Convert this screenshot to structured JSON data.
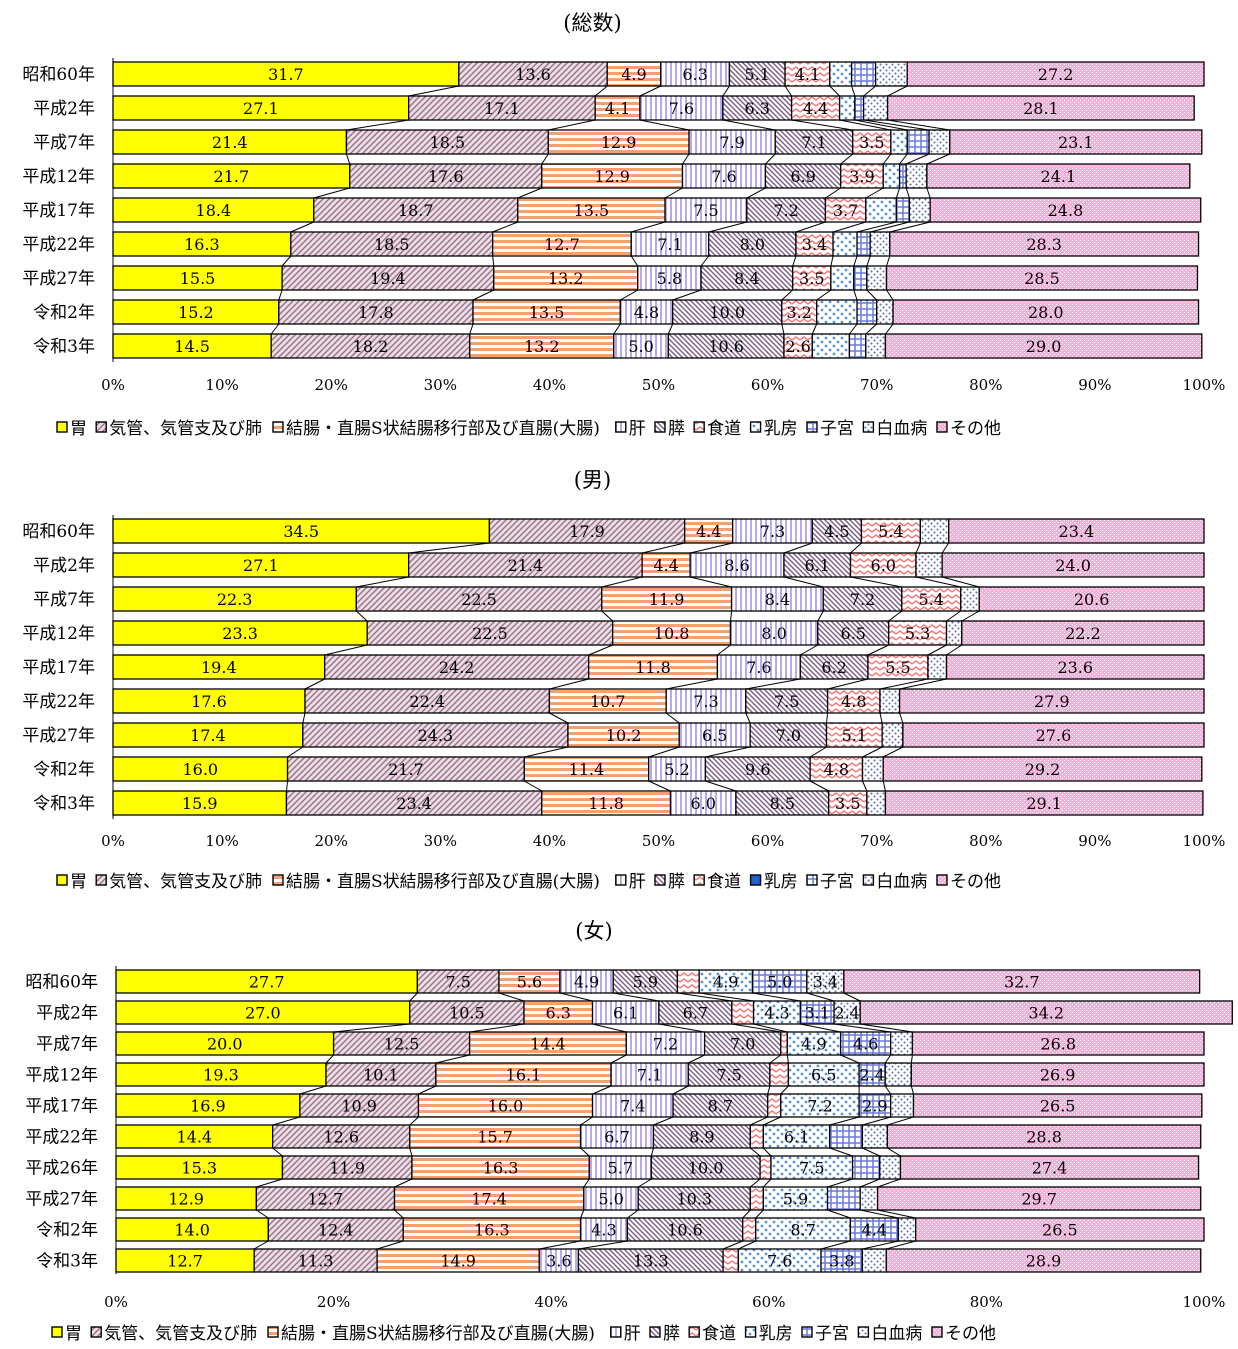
{
  "colors": {
    "胃": "#ffff00",
    "気管、気管支及び肺": "#c9a4b4",
    "結腸・直腸S状結腸移行部及び直腸(大腸)": "#f4a070",
    "肝": "#b8a8f0",
    "膵": "#9a7aa8",
    "食道": "#f0a0a0",
    "乳房": "#8ab4e8",
    "子宮": "#6a7ae0",
    "白血病": "#7a8ac8",
    "その他": "#f8b0d8"
  },
  "chart_data": [
    {
      "type": "bar",
      "orientation": "horizontal-stacked-100",
      "title": "(総数)",
      "categories": [
        "昭和60年",
        "平成2年",
        "平成7年",
        "平成12年",
        "平成17年",
        "平成22年",
        "平成27年",
        "令和2年",
        "令和3年"
      ],
      "series": [
        {
          "name": "胃",
          "values": [
            31.7,
            27.1,
            21.4,
            21.7,
            18.4,
            16.3,
            15.5,
            15.2,
            14.5
          ]
        },
        {
          "name": "気管、気管支及び肺",
          "values": [
            13.6,
            17.1,
            18.5,
            17.6,
            18.7,
            18.5,
            19.4,
            17.8,
            18.2
          ]
        },
        {
          "name": "結腸・直腸S状結腸移行部及び直腸(大腸)",
          "values": [
            4.9,
            4.1,
            12.9,
            12.9,
            13.5,
            12.7,
            13.2,
            13.5,
            13.2
          ]
        },
        {
          "name": "肝",
          "values": [
            6.3,
            7.6,
            7.9,
            7.6,
            7.5,
            7.1,
            5.8,
            4.8,
            5.0
          ]
        },
        {
          "name": "膵",
          "values": [
            5.1,
            6.3,
            7.1,
            6.9,
            7.2,
            8.0,
            8.4,
            10.0,
            10.6
          ]
        },
        {
          "name": "食道",
          "values": [
            4.1,
            4.4,
            3.5,
            3.9,
            3.7,
            3.4,
            3.5,
            3.2,
            2.6
          ]
        },
        {
          "name": "乳房",
          "values": [
            2.0,
            1.4,
            1.5,
            1.5,
            2.8,
            2.2,
            2.1,
            3.7,
            3.4
          ]
        },
        {
          "name": "子宮",
          "values": [
            2.2,
            0.8,
            2.0,
            0.6,
            1.2,
            1.2,
            1.2,
            1.8,
            1.5
          ]
        },
        {
          "name": "白血病",
          "values": [
            2.9,
            2.2,
            1.9,
            1.9,
            1.9,
            1.8,
            1.8,
            1.5,
            1.8
          ]
        },
        {
          "name": "その他",
          "values": [
            27.2,
            28.1,
            23.1,
            24.1,
            24.8,
            28.3,
            28.5,
            28.0,
            29.0
          ]
        }
      ],
      "labels": [
        [
          "31.7",
          "13.6",
          "4.9",
          "6.3",
          "5.1",
          "4.1",
          "",
          "",
          "",
          "27.2"
        ],
        [
          "27.1",
          "17.1",
          "4.1",
          "7.6",
          "6.3",
          "4.4",
          "",
          "",
          "",
          "28.1"
        ],
        [
          "21.4",
          "18.5",
          "12.9",
          "7.9",
          "7.1",
          "3.5",
          "",
          "",
          "",
          "23.1"
        ],
        [
          "21.7",
          "17.6",
          "12.9",
          "7.6",
          "6.9",
          "3.9",
          "",
          "",
          "",
          "24.1"
        ],
        [
          "18.4",
          "18.7",
          "13.5",
          "7.5",
          "7.2",
          "3.7",
          "",
          "",
          "",
          "24.8"
        ],
        [
          "16.3",
          "18.5",
          "12.7",
          "7.1",
          "8.0",
          "3.4",
          "",
          "",
          "",
          "28.3"
        ],
        [
          "15.5",
          "19.4",
          "13.2",
          "5.8",
          "8.4",
          "3.5",
          "",
          "",
          "",
          "28.5"
        ],
        [
          "15.2",
          "17.8",
          "13.5",
          "4.8",
          "10.0",
          "3.2",
          "",
          "",
          "",
          "28.0"
        ],
        [
          "14.5",
          "18.2",
          "13.2",
          "5.0",
          "10.6",
          "2.6",
          "",
          "",
          "",
          "29.0"
        ]
      ],
      "xticks": [
        "0%",
        "10%",
        "20%",
        "30%",
        "40%",
        "50%",
        "60%",
        "70%",
        "80%",
        "90%",
        "100%"
      ],
      "xlim": [
        0,
        100
      ],
      "legend": [
        {
          "key": "胃",
          "label": "胃"
        },
        {
          "key": "気管、気管支及び肺",
          "label": "気管、気管支及び肺"
        },
        {
          "key": "結腸・直腸S状結腸移行部及び直腸(大腸)",
          "label": "結腸・直腸S状結腸移行部及び直腸(大腸)"
        },
        {
          "key": "肝",
          "label": "肝"
        },
        {
          "key": "膵",
          "label": "膵"
        },
        {
          "key": "食道",
          "label": "食道"
        },
        {
          "key": "乳房",
          "label": "乳房"
        },
        {
          "key": "子宮",
          "label": "子宮"
        },
        {
          "key": "白血病",
          "label": "白血病"
        },
        {
          "key": "その他",
          "label": "その他"
        }
      ],
      "legend_position": "bottom"
    },
    {
      "type": "bar",
      "orientation": "horizontal-stacked-100",
      "title": "(男)",
      "categories": [
        "昭和60年",
        "平成2年",
        "平成7年",
        "平成12年",
        "平成17年",
        "平成22年",
        "平成27年",
        "令和2年",
        "令和3年"
      ],
      "series": [
        {
          "name": "胃",
          "values": [
            34.5,
            27.1,
            22.3,
            23.3,
            19.4,
            17.6,
            17.4,
            16.0,
            15.9
          ]
        },
        {
          "name": "気管、気管支及び肺",
          "values": [
            17.9,
            21.4,
            22.5,
            22.5,
            24.2,
            22.4,
            24.3,
            21.7,
            23.4
          ]
        },
        {
          "name": "結腸・直腸S状結腸移行部及び直腸(大腸)",
          "values": [
            4.4,
            4.4,
            11.9,
            10.8,
            11.8,
            10.7,
            10.2,
            11.4,
            11.8
          ]
        },
        {
          "name": "肝",
          "values": [
            7.3,
            8.6,
            8.4,
            8.0,
            7.6,
            7.3,
            6.5,
            5.2,
            6.0
          ]
        },
        {
          "name": "膵",
          "values": [
            4.5,
            6.1,
            7.2,
            6.5,
            6.2,
            7.5,
            7.0,
            9.6,
            8.5
          ]
        },
        {
          "name": "食道",
          "values": [
            5.4,
            6.0,
            5.4,
            5.3,
            5.5,
            4.8,
            5.1,
            4.8,
            3.5
          ]
        },
        {
          "name": "白血病",
          "values": [
            2.6,
            2.4,
            1.7,
            1.4,
            1.7,
            1.8,
            1.9,
            1.9,
            1.7
          ]
        },
        {
          "name": "その他",
          "values": [
            23.4,
            24.0,
            20.6,
            22.2,
            23.6,
            27.9,
            27.6,
            29.2,
            29.1
          ]
        }
      ],
      "labels": [
        [
          "34.5",
          "17.9",
          "4.4",
          "7.3",
          "4.5",
          "5.4",
          "",
          "23.4"
        ],
        [
          "27.1",
          "21.4",
          "4.4",
          "8.6",
          "6.1",
          "6.0",
          "",
          "24.0"
        ],
        [
          "22.3",
          "22.5",
          "11.9",
          "8.4",
          "7.2",
          "5.4",
          "",
          "20.6"
        ],
        [
          "23.3",
          "22.5",
          "10.8",
          "8.0",
          "6.5",
          "5.3",
          "",
          "22.2"
        ],
        [
          "19.4",
          "24.2",
          "11.8",
          "7.6",
          "6.2",
          "5.5",
          "",
          "23.6"
        ],
        [
          "17.6",
          "22.4",
          "10.7",
          "7.3",
          "7.5",
          "4.8",
          "",
          "27.9"
        ],
        [
          "17.4",
          "24.3",
          "10.2",
          "6.5",
          "7.0",
          "5.1",
          "",
          "27.6"
        ],
        [
          "16.0",
          "21.7",
          "11.4",
          "5.2",
          "9.6",
          "4.8",
          "",
          "29.2"
        ],
        [
          "15.9",
          "23.4",
          "11.8",
          "6.0",
          "8.5",
          "3.5",
          "",
          "29.1"
        ]
      ],
      "xticks": [
        "0%",
        "10%",
        "20%",
        "30%",
        "40%",
        "50%",
        "60%",
        "70%",
        "80%",
        "90%",
        "100%"
      ],
      "xlim": [
        0,
        100
      ],
      "legend": [
        {
          "key": "胃",
          "label": "胃"
        },
        {
          "key": "気管、気管支及び肺",
          "label": "気管、気管支及び肺"
        },
        {
          "key": "結腸・直腸S状結腸移行部及び直腸(大腸)",
          "label": "結腸・直腸S状結腸移行部及び直腸(大腸)"
        },
        {
          "key": "肝",
          "label": "肝"
        },
        {
          "key": "膵",
          "label": "膵"
        },
        {
          "key": "食道",
          "label": "食道"
        },
        {
          "key": "乳房",
          "label": "乳房"
        },
        {
          "key": "子宮",
          "label": "子宮"
        },
        {
          "key": "白血病",
          "label": "白血病"
        },
        {
          "key": "その他",
          "label": "その他"
        }
      ],
      "legend_position": "bottom"
    },
    {
      "type": "bar",
      "orientation": "horizontal-stacked-100",
      "title": "(女)",
      "categories": [
        "昭和60年",
        "平成2年",
        "平成7年",
        "平成12年",
        "平成17年",
        "平成22年",
        "平成26年",
        "平成27年",
        "令和2年",
        "令和3年"
      ],
      "series": [
        {
          "name": "胃",
          "values": [
            27.7,
            27.0,
            20.0,
            19.3,
            16.9,
            14.4,
            15.3,
            12.9,
            14.0,
            12.7
          ]
        },
        {
          "name": "気管、気管支及び肺",
          "values": [
            7.5,
            10.5,
            12.5,
            10.1,
            10.9,
            12.6,
            11.9,
            12.7,
            12.4,
            11.3
          ]
        },
        {
          "name": "結腸・直腸S状結腸移行部及び直腸(大腸)",
          "values": [
            5.6,
            6.3,
            14.4,
            16.1,
            16.0,
            15.7,
            16.3,
            17.4,
            16.3,
            14.9
          ]
        },
        {
          "name": "肝",
          "values": [
            4.9,
            6.1,
            7.2,
            7.1,
            7.4,
            6.7,
            5.7,
            5.0,
            4.3,
            3.6
          ]
        },
        {
          "name": "膵",
          "values": [
            5.9,
            6.7,
            7.0,
            7.5,
            8.7,
            8.9,
            10.0,
            10.3,
            10.6,
            13.3
          ]
        },
        {
          "name": "食道",
          "values": [
            2.0,
            2.0,
            0.6,
            1.7,
            1.2,
            1.2,
            1.0,
            1.2,
            1.2,
            1.4
          ]
        },
        {
          "name": "乳房",
          "values": [
            4.9,
            4.3,
            4.9,
            6.5,
            7.2,
            6.1,
            7.5,
            5.9,
            8.7,
            7.6
          ]
        },
        {
          "name": "子宮",
          "values": [
            5.0,
            3.1,
            4.6,
            2.4,
            2.9,
            3.0,
            2.5,
            3.0,
            4.4,
            3.8
          ]
        },
        {
          "name": "白血病",
          "values": [
            3.4,
            2.4,
            2.0,
            2.4,
            2.1,
            2.3,
            1.9,
            1.6,
            1.6,
            2.2
          ]
        },
        {
          "name": "その他",
          "values": [
            32.7,
            34.2,
            26.8,
            26.9,
            26.5,
            28.8,
            27.4,
            29.7,
            26.5,
            28.9
          ]
        }
      ],
      "labels": [
        [
          "27.7",
          "7.5",
          "5.6",
          "4.9",
          "5.9",
          "",
          "4.9",
          "5.0",
          "3.4",
          "32.7"
        ],
        [
          "27.0",
          "10.5",
          "6.3",
          "6.1",
          "6.7",
          "",
          "4.3",
          "3.1",
          "2.4",
          "34.2"
        ],
        [
          "20.0",
          "12.5",
          "14.4",
          "7.2",
          "7.0",
          "",
          "4.9",
          "4.6",
          "",
          "26.8"
        ],
        [
          "19.3",
          "10.1",
          "16.1",
          "7.1",
          "7.5",
          "",
          "6.5",
          "2.4",
          "",
          "26.9"
        ],
        [
          "16.9",
          "10.9",
          "16.0",
          "7.4",
          "8.7",
          "",
          "7.2",
          "2.9",
          "",
          "26.5"
        ],
        [
          "14.4",
          "12.6",
          "15.7",
          "6.7",
          "8.9",
          "",
          "6.1",
          "",
          "",
          "28.8"
        ],
        [
          "15.3",
          "11.9",
          "16.3",
          "5.7",
          "10.0",
          "",
          "7.5",
          "",
          "",
          "27.4"
        ],
        [
          "12.9",
          "12.7",
          "17.4",
          "5.0",
          "10.3",
          "",
          "5.9",
          "",
          "",
          "29.7"
        ],
        [
          "14.0",
          "12.4",
          "16.3",
          "4.3",
          "10.6",
          "",
          "8.7",
          "4.4",
          "",
          "26.5"
        ],
        [
          "12.7",
          "11.3",
          "14.9",
          "3.6",
          "13.3",
          "",
          "7.6",
          "3.8",
          "",
          "28.9"
        ]
      ],
      "xticks": [
        "0%",
        "20%",
        "40%",
        "60%",
        "80%",
        "100%"
      ],
      "xlim": [
        0,
        100
      ],
      "legend": [
        {
          "key": "胃",
          "label": "胃"
        },
        {
          "key": "気管、気管支及び肺",
          "label": "気管、気管支及び肺"
        },
        {
          "key": "結腸・直腸S状結腸移行部及び直腸(大腸)",
          "label": "結腸・直腸S状結腸移行部及び直腸(大腸)"
        },
        {
          "key": "肝",
          "label": "肝"
        },
        {
          "key": "膵",
          "label": "膵"
        },
        {
          "key": "食道",
          "label": "食道"
        },
        {
          "key": "乳房",
          "label": "乳房"
        },
        {
          "key": "子宮",
          "label": "子宮"
        },
        {
          "key": "白血病",
          "label": "白血病"
        },
        {
          "key": "その他",
          "label": "その他"
        }
      ],
      "legend_position": "bottom"
    }
  ]
}
